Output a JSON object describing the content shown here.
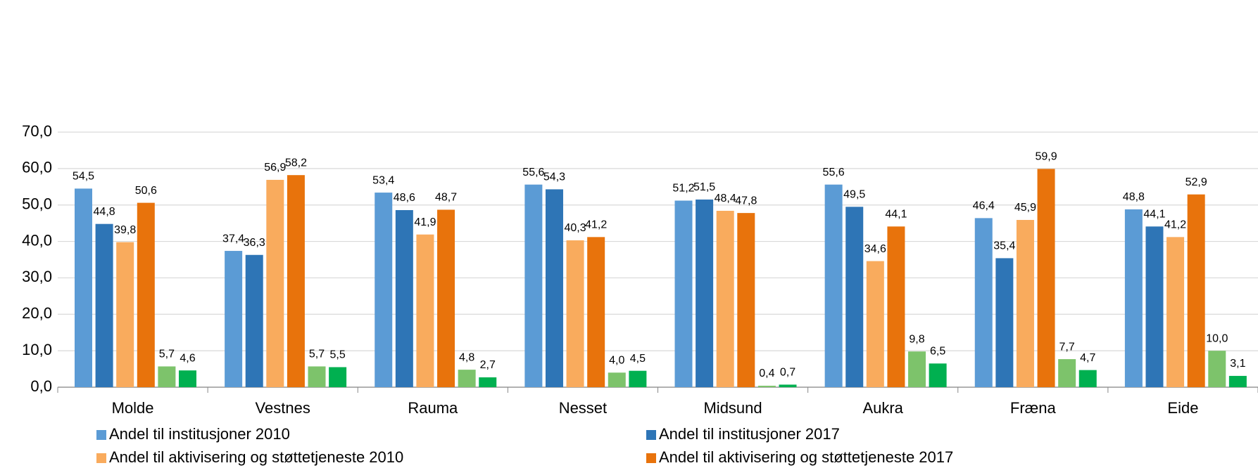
{
  "chart_data": {
    "type": "bar",
    "categories": [
      "Molde",
      "Vestnes",
      "Rauma",
      "Nesset",
      "Midsund",
      "Aukra",
      "Fræna",
      "Eide"
    ],
    "series": [
      {
        "name": "Andel til institusjoner 2010",
        "color": "#5b9bd5",
        "values": [
          54.5,
          37.4,
          53.4,
          55.6,
          51.2,
          55.6,
          46.4,
          48.8
        ],
        "value_labels": [
          "54,5",
          "37,4",
          "53,4",
          "55,6",
          "51,2",
          "55,6",
          "46,4",
          "48,8"
        ]
      },
      {
        "name": "Andel til institusjoner 2017",
        "color": "#2e75b6",
        "values": [
          44.8,
          36.3,
          48.6,
          54.3,
          51.5,
          49.5,
          35.4,
          44.1
        ],
        "value_labels": [
          "44,8",
          "36,3",
          "48,6",
          "54,3",
          "51,5",
          "49,5",
          "35,4",
          "44,1"
        ]
      },
      {
        "name": "Andel til aktivisering og støttetjeneste 2010",
        "color": "#f9ab5d",
        "values": [
          39.8,
          56.9,
          41.9,
          40.3,
          48.4,
          34.6,
          45.9,
          41.2
        ],
        "value_labels": [
          "39,8",
          "56,9",
          "41,9",
          "40,3",
          "48,4",
          "34,6",
          "45,9",
          "41,2"
        ]
      },
      {
        "name": "Andel til aktivisering og støttetjeneste 2017",
        "color": "#e8730c",
        "values": [
          50.6,
          58.2,
          48.7,
          41.2,
          47.8,
          44.1,
          59.9,
          52.9
        ],
        "value_labels": [
          "50,6",
          "58,2",
          "48,7",
          "41,2",
          "47,8",
          "44,1",
          "59,9",
          "52,9"
        ]
      },
      {
        "color": "#7dc36b",
        "values": [
          5.7,
          5.7,
          4.8,
          4.0,
          0.4,
          9.8,
          7.7,
          10.0
        ],
        "value_labels": [
          "5,7",
          "5,7",
          "4,8",
          "4,0",
          "0,4",
          "9,8",
          "7,7",
          "10,0"
        ]
      },
      {
        "color": "#00b050",
        "values": [
          4.6,
          5.5,
          2.7,
          4.5,
          0.7,
          6.5,
          4.7,
          3.1
        ],
        "value_labels": [
          "4,6",
          "5,5",
          "2,7",
          "4,5",
          "0,7",
          "6,5",
          "4,7",
          "3,1"
        ]
      }
    ],
    "ylim": [
      0,
      70
    ],
    "yticks": [
      {
        "value": 0,
        "label": "0,0"
      },
      {
        "value": 10,
        "label": "10,0"
      },
      {
        "value": 20,
        "label": "20,0"
      },
      {
        "value": 30,
        "label": "30,0"
      },
      {
        "value": 40,
        "label": "40,0"
      },
      {
        "value": 50,
        "label": "50,0"
      },
      {
        "value": 60,
        "label": "60,0"
      },
      {
        "value": 70,
        "label": "70,0"
      }
    ],
    "grid": true
  }
}
